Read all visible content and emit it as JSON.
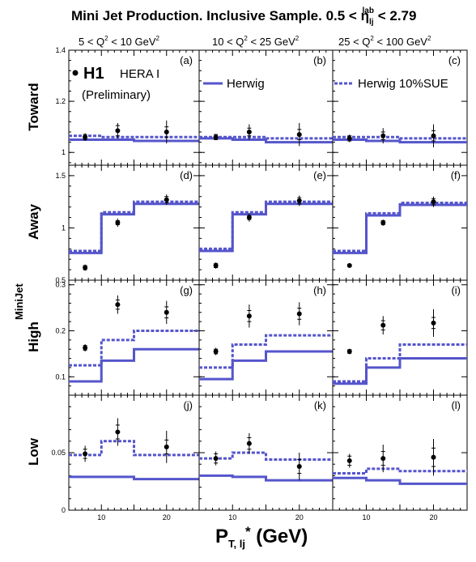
{
  "title": "Mini Jet Production.  Inclusive Sample.  0.5 < η_lj^lab < 2.79",
  "title_parts": {
    "main": "Mini Jet Production.  Inclusive Sample.  0.5 < η",
    "sub": "lj",
    "sup": "lab",
    "tail": " < 2.79"
  },
  "x_axis_label": "P_T, lj* (GeV)",
  "x_axis_parts": {
    "P": "P",
    "sub": "T, lj",
    "sup": "*",
    "unit": " (GeV)"
  },
  "y_axis_label_fragment": "MiniJet",
  "column_headers": [
    {
      "text": "5 < Q² < 10 GeV²",
      "pre": "5 < Q",
      "mid": " < 10 GeV",
      "sup": "2"
    },
    {
      "text": "10 < Q² < 25 GeV²",
      "pre": "10 < Q",
      "mid": " < 25 GeV",
      "sup": "2"
    },
    {
      "text": "25 < Q² < 100 GeV²",
      "pre": "25 < Q",
      "mid": " < 100 GeV",
      "sup": "2"
    }
  ],
  "row_labels": [
    "Toward",
    "Away",
    "High",
    "Low"
  ],
  "legend": {
    "data_label": "H1",
    "experiment": "HERA I",
    "status": "(Preliminary)",
    "herwig": "Herwig",
    "herwig_sue": "Herwig 10%SUE"
  },
  "colors": {
    "model": "#5555cc",
    "data": "#000000"
  },
  "chart_data": {
    "type": "grid-of-histograms-with-data-points",
    "x_range": [
      5,
      25
    ],
    "x_ticks": [
      10,
      20
    ],
    "x_bin_edges": [
      5,
      10,
      15,
      25
    ],
    "x_points": [
      7.5,
      12.5,
      20
    ],
    "rows": [
      {
        "name": "Toward",
        "ylim": [
          0.95,
          1.4
        ],
        "yticks": [
          1,
          1.2,
          1.4
        ],
        "panels": [
          {
            "tag": "(a)",
            "herwig": [
              1.05,
              1.05,
              1.045
            ],
            "sue": [
              1.065,
              1.06,
              1.06
            ],
            "data": [
              1.06,
              1.085,
              1.08
            ],
            "err_stat": [
              0.01,
              0.02,
              0.02
            ],
            "err_tot": [
              0.015,
              0.03,
              0.045
            ]
          },
          {
            "tag": "(b)",
            "herwig": [
              1.055,
              1.05,
              1.04
            ],
            "sue": [
              1.06,
              1.06,
              1.055
            ],
            "data": [
              1.06,
              1.08,
              1.07
            ],
            "err_stat": [
              0.01,
              0.015,
              0.02
            ],
            "err_tot": [
              0.012,
              0.03,
              0.045
            ]
          },
          {
            "tag": "(c)",
            "herwig": [
              1.05,
              1.045,
              1.04
            ],
            "sue": [
              1.06,
              1.06,
              1.055
            ],
            "data": [
              1.055,
              1.065,
              1.065
            ],
            "err_stat": [
              0.01,
              0.015,
              0.02
            ],
            "err_tot": [
              0.015,
              0.03,
              0.045
            ]
          }
        ]
      },
      {
        "name": "Away",
        "ylim": [
          0.5,
          1.6
        ],
        "yticks": [
          0.5,
          1,
          1.5
        ],
        "panels": [
          {
            "tag": "(d)",
            "herwig": [
              0.76,
              1.13,
              1.23
            ],
            "sue": [
              0.78,
              1.15,
              1.25
            ],
            "data": [
              0.62,
              1.05,
              1.27
            ],
            "err_stat": [
              0.02,
              0.02,
              0.03
            ],
            "err_tot": [
              0.03,
              0.04,
              0.05
            ]
          },
          {
            "tag": "(e)",
            "herwig": [
              0.78,
              1.13,
              1.23
            ],
            "sue": [
              0.8,
              1.15,
              1.25
            ],
            "data": [
              0.64,
              1.1,
              1.26
            ],
            "err_stat": [
              0.02,
              0.02,
              0.03
            ],
            "err_tot": [
              0.03,
              0.04,
              0.05
            ]
          },
          {
            "tag": "(f)",
            "herwig": [
              0.76,
              1.12,
              1.22
            ],
            "sue": [
              0.78,
              1.14,
              1.24
            ],
            "data": [
              0.64,
              1.05,
              1.25
            ],
            "err_stat": [
              0.01,
              0.02,
              0.03
            ],
            "err_tot": [
              0.015,
              0.03,
              0.05
            ]
          }
        ]
      },
      {
        "name": "High",
        "ylim": [
          0.06,
          0.31
        ],
        "yticks": [
          0.1,
          0.2,
          0.3
        ],
        "panels": [
          {
            "tag": "(g)",
            "herwig": [
              0.09,
              0.135,
              0.16
            ],
            "sue": [
              0.125,
              0.18,
              0.2
            ],
            "data": [
              0.163,
              0.257,
              0.24
            ],
            "err_stat": [
              0.005,
              0.01,
              0.012
            ],
            "err_tot": [
              0.008,
              0.02,
              0.025
            ]
          },
          {
            "tag": "(h)",
            "herwig": [
              0.095,
              0.135,
              0.155
            ],
            "sue": [
              0.12,
              0.17,
              0.19
            ],
            "data": [
              0.155,
              0.232,
              0.237
            ],
            "err_stat": [
              0.005,
              0.012,
              0.012
            ],
            "err_tot": [
              0.008,
              0.025,
              0.025
            ]
          },
          {
            "tag": "(i)",
            "herwig": [
              0.085,
              0.12,
              0.14
            ],
            "sue": [
              0.09,
              0.14,
              0.17
            ],
            "data": [
              0.155,
              0.212,
              0.217
            ],
            "err_stat": [
              0.004,
              0.01,
              0.012
            ],
            "err_tot": [
              0.006,
              0.02,
              0.03
            ]
          }
        ]
      },
      {
        "name": "Low",
        "ylim": [
          0,
          0.1
        ],
        "yticks": [
          0,
          0.05
        ],
        "panels": [
          {
            "tag": "(j)",
            "herwig": [
              0.029,
              0.029,
              0.027
            ],
            "sue": [
              0.048,
              0.06,
              0.048
            ],
            "data": [
              0.049,
              0.068,
              0.055
            ],
            "err_stat": [
              0.004,
              0.006,
              0.006
            ],
            "err_tot": [
              0.007,
              0.012,
              0.014
            ]
          },
          {
            "tag": "(k)",
            "herwig": [
              0.03,
              0.029,
              0.026
            ],
            "sue": [
              0.045,
              0.05,
              0.044
            ],
            "data": [
              0.045,
              0.058,
              0.038
            ],
            "err_stat": [
              0.004,
              0.005,
              0.006
            ],
            "err_tot": [
              0.006,
              0.009,
              0.012
            ]
          },
          {
            "tag": "(l)",
            "herwig": [
              0.028,
              0.026,
              0.023
            ],
            "sue": [
              0.032,
              0.036,
              0.034
            ],
            "data": [
              0.043,
              0.045,
              0.046
            ],
            "err_stat": [
              0.004,
              0.006,
              0.008
            ],
            "err_tot": [
              0.006,
              0.012,
              0.016
            ]
          }
        ]
      }
    ]
  }
}
